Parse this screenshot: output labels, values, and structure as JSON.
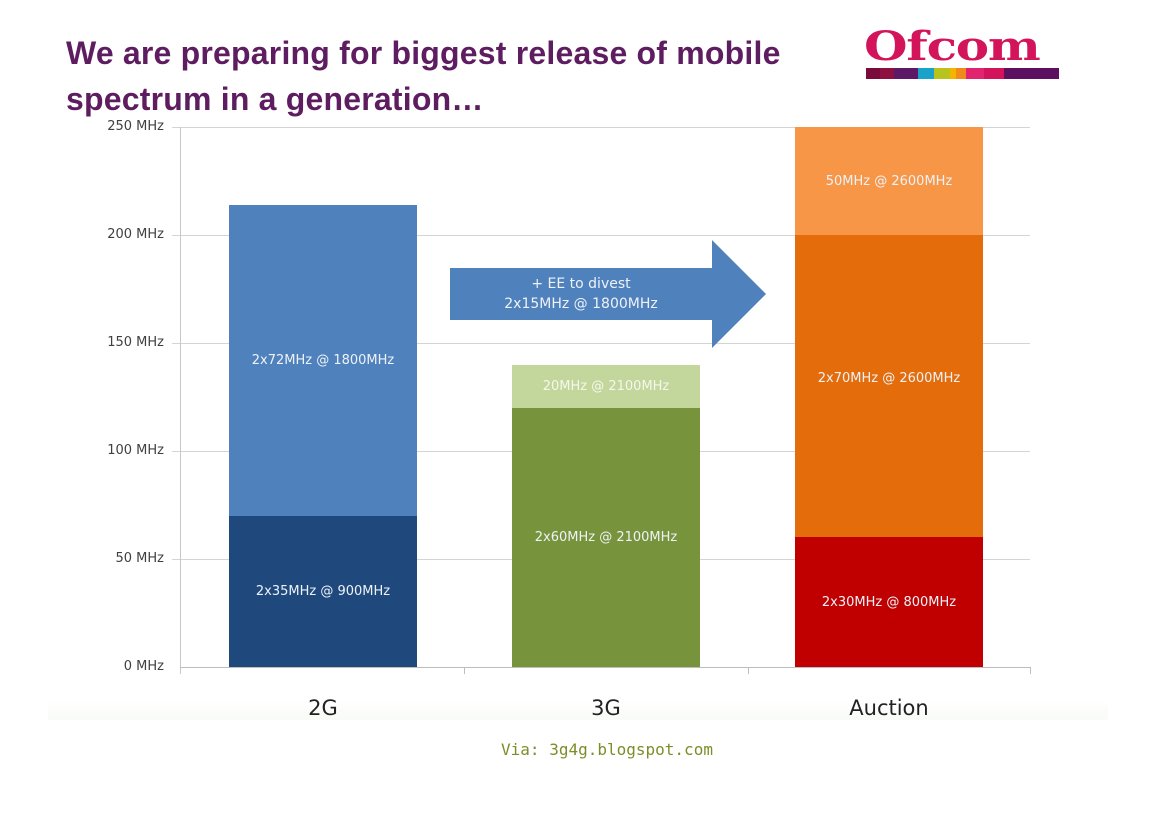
{
  "slide": {
    "title_line1": "We are preparing for biggest release of mobile",
    "title_line2": "spectrum in a generation…",
    "logo_text": "Ofcom",
    "logo_stripe_colors": [
      "#7a0a3a",
      "#8c1040",
      "#5c1a66",
      "#1aa3c8",
      "#b9c31d",
      "#f4b400",
      "#f08a1c",
      "#e2236f",
      "#d4145a",
      "#5e1060"
    ],
    "arrow_annotation_line1": "+ EE to divest",
    "arrow_annotation_line2": "2x15MHz @ 1800MHz",
    "credit": "Via: 3g4g.blogspot.com",
    "colors": {
      "title": "#5e1d60",
      "arrow": "#4f81bd",
      "credit": "#7f8c2a"
    }
  },
  "chart_data": {
    "type": "bar",
    "stacked": true,
    "title": "We are preparing for biggest release of mobile spectrum in a generation…",
    "xlabel": "",
    "ylabel": "",
    "ylim": [
      0,
      250
    ],
    "yticks": [
      "0 MHz",
      "50 MHz",
      "100 MHz",
      "150 MHz",
      "200 MHz",
      "250 MHz"
    ],
    "grid": true,
    "legend": "none (segments labelled inline)",
    "categories": [
      "2G",
      "3G",
      "Auction"
    ],
    "stacks": [
      {
        "category": "2G",
        "segments": [
          {
            "label": "2x35MHz @ 900MHz",
            "value": 70,
            "color": "#1f497d"
          },
          {
            "label": "2x72MHz @ 1800MHz",
            "value": 144,
            "color": "#4f81bd"
          }
        ],
        "total": 214
      },
      {
        "category": "3G",
        "segments": [
          {
            "label": "2x60MHz @ 2100MHz",
            "value": 120,
            "color": "#77933c"
          },
          {
            "label": "20MHz @ 2100MHz",
            "value": 20,
            "color": "#c3d69b"
          }
        ],
        "total": 140
      },
      {
        "category": "Auction",
        "segments": [
          {
            "label": "2x30MHz @ 800MHz",
            "value": 60,
            "color": "#c00000"
          },
          {
            "label": "2x70MHz @ 2600MHz",
            "value": 140,
            "color": "#e46c0a"
          },
          {
            "label": "50MHz @ 2600MHz",
            "value": 50,
            "color": "#f79646"
          }
        ],
        "total": 250
      }
    ],
    "annotations": [
      {
        "type": "arrow",
        "from": "3G",
        "to": "Auction",
        "text": "+ EE to divest 2x15MHz @ 1800MHz"
      }
    ]
  }
}
